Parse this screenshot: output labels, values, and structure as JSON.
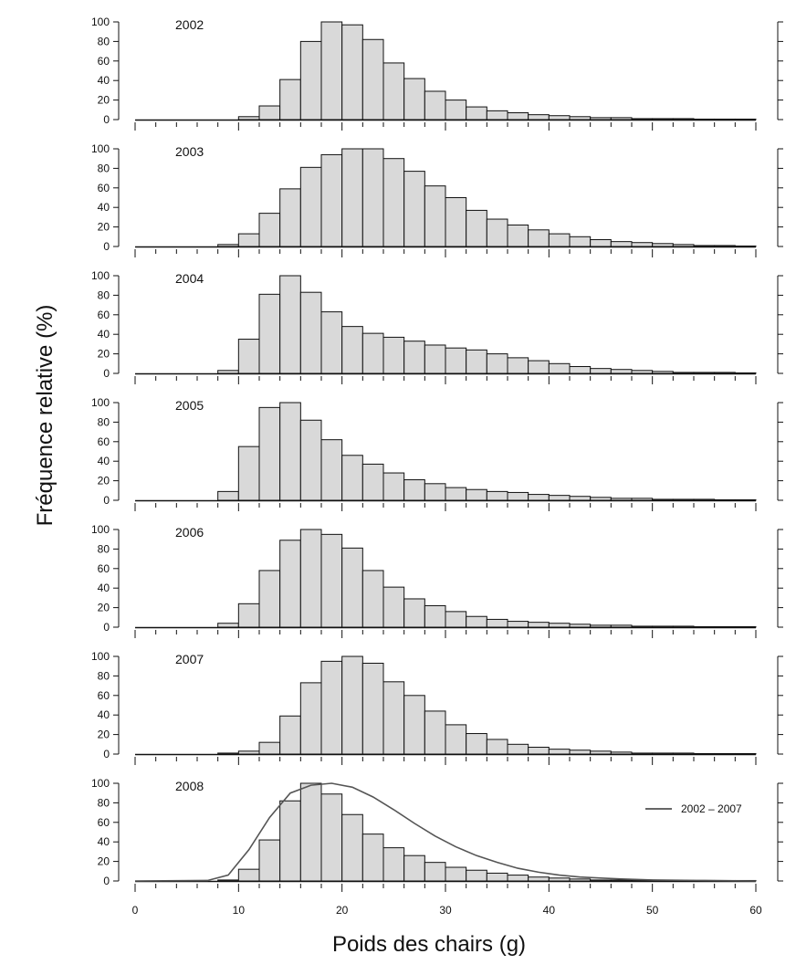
{
  "chart_data": {
    "type": "bar",
    "xlabel": "Poids des chairs (g)",
    "ylabel": "Fréquence relative (%)",
    "xlim": [
      0,
      60
    ],
    "ylim": [
      0,
      100
    ],
    "bin_width": 2,
    "x_ticks": [
      0,
      10,
      20,
      30,
      40,
      50,
      60
    ],
    "y_ticks": [
      0,
      20,
      40,
      60,
      80,
      100
    ],
    "bar_color": "#d9d9d9",
    "edge_color": "#111111",
    "bin_starts": [
      0,
      2,
      4,
      6,
      8,
      10,
      12,
      14,
      16,
      18,
      20,
      22,
      24,
      26,
      28,
      30,
      32,
      34,
      36,
      38,
      40,
      42,
      44,
      46,
      48,
      50,
      52,
      54,
      56,
      58
    ],
    "series": [
      {
        "name": "2002",
        "values": [
          0,
          0,
          0,
          0,
          0,
          3,
          14,
          41,
          80,
          100,
          97,
          82,
          58,
          42,
          29,
          20,
          13,
          9,
          7,
          5,
          4,
          3,
          2,
          2,
          1,
          1,
          1,
          0.5,
          0.5,
          0.5
        ]
      },
      {
        "name": "2003",
        "values": [
          0,
          0,
          0,
          0,
          2,
          13,
          34,
          59,
          81,
          94,
          100,
          100,
          90,
          77,
          62,
          50,
          37,
          28,
          22,
          17,
          13,
          10,
          7,
          5,
          4,
          3,
          2,
          1,
          1,
          0.5
        ]
      },
      {
        "name": "2004",
        "values": [
          0,
          0,
          0,
          0,
          3,
          35,
          81,
          100,
          83,
          63,
          48,
          41,
          37,
          33,
          29,
          26,
          24,
          20,
          16,
          13,
          10,
          7,
          5,
          4,
          3,
          2,
          1,
          1,
          1,
          0.5
        ]
      },
      {
        "name": "2005",
        "values": [
          0,
          0,
          0,
          0,
          9,
          55,
          95,
          100,
          82,
          62,
          46,
          37,
          28,
          21,
          17,
          13,
          11,
          9,
          8,
          6,
          5,
          4,
          3,
          2,
          2,
          1,
          1,
          1,
          0.5,
          0.5
        ]
      },
      {
        "name": "2006",
        "values": [
          0,
          0,
          0,
          0,
          4,
          24,
          58,
          89,
          100,
          95,
          81,
          58,
          41,
          29,
          22,
          16,
          11,
          8,
          6,
          5,
          4,
          3,
          2,
          2,
          1,
          1,
          1,
          0.5,
          0.5,
          0.5
        ]
      },
      {
        "name": "2007",
        "values": [
          0,
          0,
          0,
          0,
          1,
          3,
          12,
          39,
          73,
          95,
          100,
          93,
          74,
          60,
          44,
          30,
          21,
          15,
          10,
          7,
          5,
          4,
          3,
          2,
          1,
          1,
          1,
          0.5,
          0.5,
          0.5
        ]
      },
      {
        "name": "2008",
        "values": [
          0,
          0,
          0,
          0,
          1,
          12,
          42,
          82,
          100,
          89,
          68,
          48,
          34,
          26,
          19,
          14,
          11,
          8,
          6,
          4,
          3,
          2,
          1,
          1,
          1,
          0.5,
          0.5,
          0.5,
          0.5,
          0.5
        ]
      }
    ],
    "reference_line": {
      "name": "2002 – 2007",
      "panel": "2008",
      "x": [
        0,
        7,
        9,
        11,
        13,
        15,
        17,
        19,
        21,
        23,
        25,
        27,
        29,
        31,
        33,
        35,
        37,
        39,
        41,
        43,
        45,
        47,
        50,
        55,
        60
      ],
      "y": [
        0,
        0.5,
        6,
        32,
        65,
        90,
        98,
        100,
        96,
        86,
        73,
        59,
        46,
        35,
        26,
        19,
        13,
        9,
        6,
        4,
        3,
        2,
        1,
        0.5,
        0
      ]
    },
    "legend": {
      "position": "right",
      "panel": "2008"
    }
  }
}
